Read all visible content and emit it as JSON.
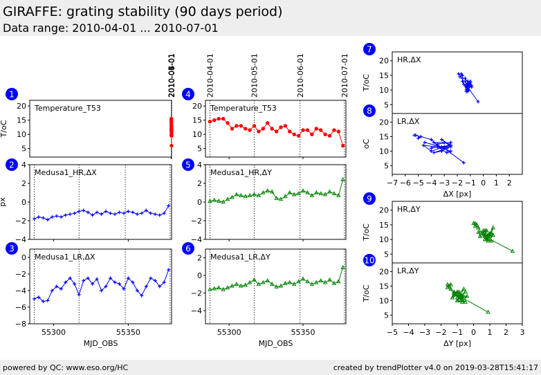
{
  "header": {
    "title": "GIRAFFE: grating stability (90 days period)",
    "subtitle": "Data range: 2010-04-01 ... 2010-07-01"
  },
  "footer": {
    "left": "powered by QC: www.eso.org/HC",
    "right": "created by trendPlotter v4.0 on 2019-03-28T15:41:17"
  },
  "colors": {
    "red": "#ff0000",
    "blue": "#0000ff",
    "green": "#008000",
    "badge": "#0000ff"
  },
  "chart_data": [
    {
      "id": 1,
      "type": "line",
      "label": "Temperature_T53",
      "ylabel": "T/oC",
      "xlabel": "",
      "xlim": [
        5328.0,
        55379
      ],
      "ylim": [
        2,
        22
      ],
      "yticks": [
        5,
        10,
        15,
        20
      ],
      "xticks": [
        55300,
        55350
      ],
      "show_xticklabels": false,
      "top_dates": [
        "2010-04-01",
        "2010-05-01",
        "2010-06-01",
        "2010-07-01"
      ],
      "vlines": [
        55287,
        55317,
        55348,
        55378
      ],
      "marker": "circle",
      "color": "red",
      "series": [
        {
          "name": "Temperature_T53",
          "x": [
            55287,
            55290,
            55293,
            55296,
            55299,
            55302,
            55305,
            55308,
            55311,
            55314,
            55317,
            55320,
            55323,
            55326,
            55329,
            55332,
            55335,
            55338,
            55341,
            55344,
            55347,
            55350,
            55353,
            55356,
            55359,
            55362,
            55365,
            55368,
            55371,
            55374,
            55377
          ],
          "y": [
            14.5,
            15.0,
            15.5,
            15.5,
            14.0,
            12.0,
            13.0,
            13.0,
            12.0,
            11.5,
            13.0,
            11.0,
            12.0,
            14.0,
            12.0,
            11.0,
            12.5,
            13.0,
            11.0,
            10.0,
            9.5,
            11.5,
            11.5,
            10.0,
            12.0,
            11.5,
            10.0,
            9.5,
            11.5,
            11.0,
            6.0
          ]
        }
      ]
    },
    {
      "id": 2,
      "type": "line",
      "label": "Medusa1_HR,ΔX",
      "ylabel": "px",
      "xlabel": "",
      "xlim": [
        55284,
        55379
      ],
      "ylim": [
        -4,
        4
      ],
      "yticks": [
        -4,
        -2,
        0,
        2,
        4
      ],
      "xticks": [
        55300,
        55350
      ],
      "show_xticklabels": false,
      "vlines": [
        55287,
        55317,
        55348,
        55378
      ],
      "marker": "plus",
      "color": "blue",
      "series": [
        {
          "name": "Medusa1_HR,ΔX",
          "x": [
            55287,
            55290,
            55293,
            55296,
            55299,
            55302,
            55305,
            55308,
            55311,
            55314,
            55317,
            55320,
            55323,
            55326,
            55329,
            55332,
            55335,
            55338,
            55341,
            55344,
            55347,
            55350,
            55353,
            55356,
            55359,
            55362,
            55365,
            55368,
            55371,
            55374,
            55377
          ],
          "y": [
            -1.8,
            -1.6,
            -1.7,
            -1.9,
            -1.6,
            -1.5,
            -1.6,
            -1.4,
            -1.3,
            -1.2,
            -1.0,
            -0.9,
            -1.1,
            -1.4,
            -1.1,
            -1.3,
            -1.0,
            -1.2,
            -1.3,
            -1.1,
            -1.2,
            -1.0,
            -1.1,
            -1.3,
            -1.2,
            -0.9,
            -1.2,
            -1.3,
            -1.4,
            -1.2,
            -0.4
          ]
        }
      ]
    },
    {
      "id": 3,
      "type": "line",
      "label": "Medusa1_LR,ΔX",
      "ylabel": "",
      "xlabel": "MJD_OBS",
      "xlim": [
        55284,
        55379
      ],
      "ylim": [
        -8,
        1
      ],
      "yticks": [
        -8,
        -6,
        -4,
        -2,
        0
      ],
      "xticks": [
        55300,
        55350
      ],
      "show_xticklabels": true,
      "vlines": [
        55287,
        55317,
        55348,
        55378
      ],
      "marker": "plus",
      "color": "blue",
      "series": [
        {
          "name": "Medusa1_LR,ΔX",
          "x": [
            55287,
            55290,
            55293,
            55296,
            55299,
            55302,
            55305,
            55308,
            55311,
            55314,
            55317,
            55320,
            55323,
            55326,
            55329,
            55332,
            55335,
            55338,
            55341,
            55344,
            55347,
            55350,
            55353,
            55356,
            55359,
            55362,
            55365,
            55368,
            55371,
            55374,
            55377
          ],
          "y": [
            -5.0,
            -4.8,
            -5.3,
            -5.2,
            -4.0,
            -3.5,
            -3.8,
            -3.0,
            -2.5,
            -3.2,
            -4.5,
            -2.8,
            -2.5,
            -3.2,
            -2.6,
            -4.0,
            -3.5,
            -2.5,
            -3.0,
            -3.2,
            -3.8,
            -2.5,
            -3.0,
            -4.0,
            -4.6,
            -3.5,
            -2.5,
            -2.8,
            -3.5,
            -3.0,
            -1.5
          ]
        }
      ]
    },
    {
      "id": 4,
      "type": "line",
      "label": "Temperature_T53",
      "ylabel": "",
      "xlabel": "",
      "xlim": [
        55284,
        55379
      ],
      "ylim": [
        2,
        22
      ],
      "yticks": [
        5,
        10,
        15,
        20
      ],
      "xticks": [
        55300,
        55350
      ],
      "show_xticklabels": false,
      "top_dates": [
        "2010-04-01",
        "2010-05-01",
        "2010-06-01",
        "2010-07-01"
      ],
      "vlines": [
        55287,
        55317,
        55348,
        55378
      ],
      "marker": "circle",
      "color": "red",
      "series": [
        {
          "name": "Temperature_T53",
          "x": [
            55287,
            55290,
            55293,
            55296,
            55299,
            55302,
            55305,
            55308,
            55311,
            55314,
            55317,
            55320,
            55323,
            55326,
            55329,
            55332,
            55335,
            55338,
            55341,
            55344,
            55347,
            55350,
            55353,
            55356,
            55359,
            55362,
            55365,
            55368,
            55371,
            55374,
            55377
          ],
          "y": [
            14.5,
            15.0,
            15.5,
            15.5,
            14.0,
            12.0,
            13.0,
            13.0,
            12.0,
            11.5,
            13.0,
            11.0,
            12.0,
            14.0,
            12.0,
            11.0,
            12.5,
            13.0,
            11.0,
            10.0,
            9.5,
            11.5,
            11.5,
            10.0,
            12.0,
            11.5,
            10.0,
            9.5,
            11.5,
            11.0,
            6.0
          ]
        }
      ]
    },
    {
      "id": 5,
      "type": "line",
      "label": "Medusa1_HR,ΔY",
      "ylabel": "",
      "xlabel": "",
      "xlim": [
        55284,
        55379
      ],
      "ylim": [
        -4,
        4
      ],
      "yticks": [
        -4,
        -2,
        0,
        2,
        4
      ],
      "xticks": [
        55300,
        55350
      ],
      "show_xticklabels": false,
      "vlines": [
        55287,
        55317,
        55348,
        55378
      ],
      "marker": "triangle",
      "color": "green",
      "series": [
        {
          "name": "Medusa1_HR,ΔY",
          "x": [
            55287,
            55290,
            55293,
            55296,
            55299,
            55302,
            55305,
            55308,
            55311,
            55314,
            55317,
            55320,
            55323,
            55326,
            55329,
            55332,
            55335,
            55338,
            55341,
            55344,
            55347,
            55350,
            55353,
            55356,
            55359,
            55362,
            55365,
            55368,
            55371,
            55374,
            55377
          ],
          "y": [
            0.1,
            0.2,
            0.1,
            0.0,
            0.3,
            0.5,
            0.8,
            0.7,
            0.6,
            0.7,
            0.8,
            0.7,
            1.0,
            1.2,
            1.1,
            0.4,
            0.3,
            0.6,
            1.0,
            0.8,
            0.9,
            1.2,
            1.0,
            0.7,
            1.0,
            0.9,
            0.8,
            1.1,
            0.9,
            0.7,
            2.4
          ]
        }
      ]
    },
    {
      "id": 6,
      "type": "line",
      "label": "Medusa1_LR,ΔY",
      "ylabel": "",
      "xlabel": "MJD_OBS",
      "xlim": [
        55284,
        55379
      ],
      "ylim": [
        -5.5,
        3
      ],
      "yticks": [
        -4,
        -2,
        0,
        2
      ],
      "xticks": [
        55300,
        55350
      ],
      "show_xticklabels": true,
      "vlines": [
        55287,
        55317,
        55348,
        55378
      ],
      "marker": "triangle",
      "color": "green",
      "series": [
        {
          "name": "Medusa1_LR,ΔY",
          "x": [
            55287,
            55290,
            55293,
            55296,
            55299,
            55302,
            55305,
            55308,
            55311,
            55314,
            55317,
            55320,
            55323,
            55326,
            55329,
            55332,
            55335,
            55338,
            55341,
            55344,
            55347,
            55350,
            55353,
            55356,
            55359,
            55362,
            55365,
            55368,
            55371,
            55374,
            55377
          ],
          "y": [
            -1.6,
            -1.5,
            -1.4,
            -1.6,
            -1.4,
            -1.2,
            -1.0,
            -1.2,
            -1.1,
            -0.8,
            -0.5,
            -1.0,
            -0.8,
            -0.6,
            -1.0,
            -1.3,
            -1.2,
            -0.9,
            -0.8,
            -1.0,
            -0.7,
            -0.4,
            -0.7,
            -1.0,
            -0.8,
            -0.6,
            -0.8,
            -0.5,
            -0.9,
            -0.7,
            0.9
          ]
        }
      ]
    },
    {
      "id": 7,
      "type": "scatter",
      "label": "HR,ΔX",
      "ylabel": "T/oC",
      "xlabel": "",
      "xlim": [
        -7,
        3
      ],
      "ylim": [
        2,
        23
      ],
      "yticks": [
        5,
        10,
        15,
        20
      ],
      "xticks": [
        -7,
        -6,
        -5,
        -4,
        -3,
        -2,
        -1,
        0,
        1,
        2
      ],
      "show_xticklabels": false,
      "marker": "plus",
      "color": "blue",
      "connect": true,
      "series": [
        {
          "name": "HR,ΔX",
          "x": [
            -1.8,
            -1.6,
            -1.7,
            -1.9,
            -1.6,
            -1.5,
            -1.6,
            -1.4,
            -1.3,
            -1.2,
            -1.0,
            -0.9,
            -1.1,
            -1.4,
            -1.1,
            -1.3,
            -1.0,
            -1.2,
            -1.3,
            -1.1,
            -1.2,
            -1.0,
            -1.1,
            -1.3,
            -1.2,
            -0.9,
            -1.2,
            -1.3,
            -1.4,
            -1.2,
            -0.4
          ],
          "y": [
            14.5,
            15.0,
            15.5,
            15.5,
            14.0,
            12.0,
            13.0,
            13.0,
            12.0,
            11.5,
            13.0,
            11.0,
            12.0,
            14.0,
            12.0,
            11.0,
            12.5,
            13.0,
            11.0,
            10.0,
            9.5,
            11.5,
            11.5,
            10.0,
            12.0,
            11.5,
            10.0,
            9.5,
            11.5,
            11.0,
            6.0
          ]
        }
      ]
    },
    {
      "id": 8,
      "type": "scatter",
      "label": "LR,ΔX",
      "ylabel": "oC",
      "xlabel": "ΔX [px]",
      "xlim": [
        -7,
        3
      ],
      "ylim": [
        2,
        23
      ],
      "yticks": [
        5,
        10,
        15,
        20
      ],
      "xticks": [
        -7,
        -6,
        -5,
        -4,
        -3,
        -2,
        -1,
        0,
        1,
        2
      ],
      "show_xticklabels": true,
      "marker": "plus",
      "color": "blue",
      "connect": true,
      "series": [
        {
          "name": "LR,ΔX",
          "x": [
            -5.0,
            -4.8,
            -5.3,
            -5.2,
            -4.0,
            -3.5,
            -3.8,
            -3.0,
            -2.5,
            -3.2,
            -4.5,
            -2.8,
            -2.5,
            -3.2,
            -2.6,
            -4.0,
            -3.5,
            -2.5,
            -3.0,
            -3.2,
            -3.8,
            -2.5,
            -3.0,
            -4.0,
            -4.6,
            -3.5,
            -2.5,
            -2.8,
            -3.5,
            -3.0,
            -1.5
          ],
          "y": [
            14.5,
            15.0,
            15.5,
            15.5,
            14.0,
            12.0,
            13.0,
            13.0,
            12.0,
            11.5,
            13.0,
            11.0,
            12.0,
            14.0,
            12.0,
            11.0,
            12.5,
            13.0,
            11.0,
            10.0,
            9.5,
            11.5,
            11.5,
            10.0,
            12.0,
            11.5,
            10.0,
            9.5,
            11.5,
            11.0,
            6.0
          ]
        }
      ]
    },
    {
      "id": 9,
      "type": "scatter",
      "label": "HR,ΔY",
      "ylabel": "T/oC",
      "xlabel": "",
      "xlim": [
        -5,
        3
      ],
      "ylim": [
        2,
        23
      ],
      "yticks": [
        5,
        10,
        15,
        20
      ],
      "xticks": [
        -5,
        -4,
        -3,
        -2,
        -1,
        0,
        1,
        2,
        3
      ],
      "show_xticklabels": false,
      "marker": "triangle",
      "color": "green",
      "connect": true,
      "series": [
        {
          "name": "HR,ΔY",
          "x": [
            0.1,
            0.2,
            0.1,
            0.0,
            0.3,
            0.5,
            0.8,
            0.7,
            0.6,
            0.7,
            0.8,
            0.7,
            1.0,
            1.2,
            1.1,
            0.4,
            0.3,
            0.6,
            1.0,
            0.8,
            0.9,
            1.2,
            1.0,
            0.7,
            1.0,
            0.9,
            0.8,
            1.1,
            0.9,
            0.7,
            2.4
          ],
          "y": [
            14.5,
            15.0,
            15.5,
            15.5,
            14.0,
            12.0,
            13.0,
            13.0,
            12.0,
            11.5,
            13.0,
            11.0,
            12.0,
            14.0,
            12.0,
            11.0,
            12.5,
            13.0,
            11.0,
            10.0,
            9.5,
            11.5,
            11.5,
            10.0,
            12.0,
            11.5,
            10.0,
            9.5,
            11.5,
            11.0,
            6.0
          ]
        }
      ]
    },
    {
      "id": 10,
      "type": "scatter",
      "label": "LR,ΔY",
      "ylabel": "T/oC",
      "xlabel": "ΔY [px]",
      "xlim": [
        -5,
        3
      ],
      "ylim": [
        2,
        23
      ],
      "yticks": [
        5,
        10,
        15,
        20
      ],
      "xticks": [
        -5,
        -4,
        -3,
        -2,
        -1,
        0,
        1,
        2,
        3
      ],
      "show_xticklabels": true,
      "marker": "triangle",
      "color": "green",
      "connect": true,
      "series": [
        {
          "name": "LR,ΔY",
          "x": [
            -1.6,
            -1.5,
            -1.4,
            -1.6,
            -1.4,
            -1.2,
            -1.0,
            -1.2,
            -1.1,
            -0.8,
            -0.5,
            -1.0,
            -0.8,
            -0.6,
            -1.0,
            -1.3,
            -1.2,
            -0.9,
            -0.8,
            -1.0,
            -0.7,
            -0.4,
            -0.7,
            -1.0,
            -0.8,
            -0.6,
            -0.8,
            -0.5,
            -0.9,
            -0.7,
            0.9
          ],
          "y": [
            14.5,
            15.0,
            15.5,
            15.5,
            14.0,
            12.0,
            13.0,
            13.0,
            12.0,
            11.5,
            13.0,
            11.0,
            12.0,
            14.0,
            12.0,
            11.0,
            12.5,
            13.0,
            11.0,
            10.0,
            9.5,
            11.5,
            11.5,
            10.0,
            12.0,
            11.5,
            10.0,
            9.5,
            11.5,
            11.0,
            6.0
          ]
        }
      ]
    }
  ]
}
